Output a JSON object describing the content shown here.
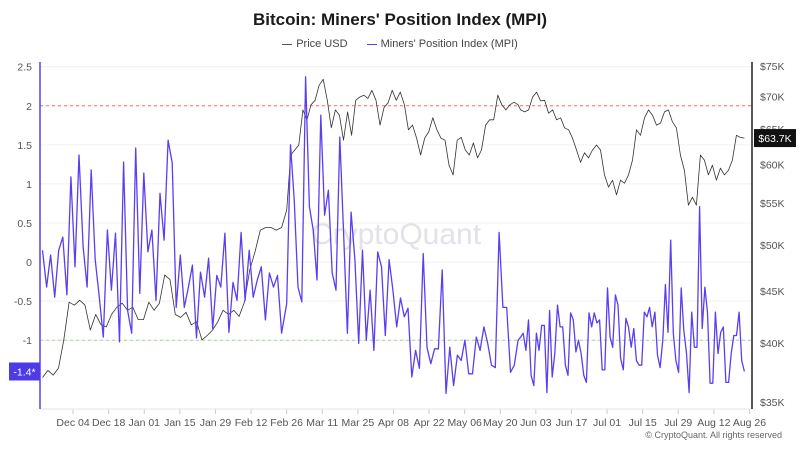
{
  "chart_data": {
    "type": "line",
    "title": "Bitcoin: Miners' Position Index (MPI)",
    "legend_placement": "top-center",
    "grid": true,
    "x_axis": {
      "type": "date",
      "range": [
        "2023-11-21",
        "2024-08-27"
      ],
      "ticks": [
        {
          "date": "2023-12-04",
          "label": "Dec 04"
        },
        {
          "date": "2023-12-18",
          "label": "Dec 18"
        },
        {
          "date": "2024-01-01",
          "label": "Jan 01"
        },
        {
          "date": "2024-01-15",
          "label": "Jan 15"
        },
        {
          "date": "2024-01-29",
          "label": "Jan 29"
        },
        {
          "date": "2024-02-12",
          "label": "Feb 12"
        },
        {
          "date": "2024-02-26",
          "label": "Feb 26"
        },
        {
          "date": "2024-03-11",
          "label": "Mar 11"
        },
        {
          "date": "2024-03-25",
          "label": "Mar 25"
        },
        {
          "date": "2024-04-08",
          "label": "Apr 08"
        },
        {
          "date": "2024-04-22",
          "label": "Apr 22"
        },
        {
          "date": "2024-05-06",
          "label": "May 06"
        },
        {
          "date": "2024-05-20",
          "label": "May 20"
        },
        {
          "date": "2024-06-03",
          "label": "Jun 03"
        },
        {
          "date": "2024-06-17",
          "label": "Jun 17"
        },
        {
          "date": "2024-07-01",
          "label": "Jul 01"
        },
        {
          "date": "2024-07-15",
          "label": "Jul 15"
        },
        {
          "date": "2024-07-29",
          "label": "Jul 29"
        },
        {
          "date": "2024-08-12",
          "label": "Aug 12"
        },
        {
          "date": "2024-08-26",
          "label": "Aug 26"
        }
      ]
    },
    "y_left": {
      "scale": "linear",
      "range": [
        -1.88,
        2.56
      ],
      "ticks": [
        {
          "value": 2.5,
          "label": "2.5"
        },
        {
          "value": 2,
          "label": "2"
        },
        {
          "value": 1.5,
          "label": "1.5"
        },
        {
          "value": 1,
          "label": "1"
        },
        {
          "value": 0.5,
          "label": "0.5"
        },
        {
          "value": 0,
          "label": "0"
        },
        {
          "value": -0.5,
          "label": "-0.5"
        },
        {
          "value": -1,
          "label": "-1"
        }
      ]
    },
    "y_right": {
      "scale": "log",
      "range": [
        34450,
        75700
      ],
      "ticks": [
        {
          "value": 75000,
          "label": "$75K"
        },
        {
          "value": 70000,
          "label": "$70K"
        },
        {
          "value": 65000,
          "label": "$65K"
        },
        {
          "value": 60000,
          "label": "$60K"
        },
        {
          "value": 55000,
          "label": "$55K"
        },
        {
          "value": 50000,
          "label": "$50K"
        },
        {
          "value": 45000,
          "label": "$45K"
        },
        {
          "value": 40000,
          "label": "$40K"
        },
        {
          "value": 35000,
          "label": "$35K"
        }
      ]
    },
    "reference_lines": [
      {
        "axis": "left",
        "value": 2,
        "color": "#f07070",
        "style": "dashed"
      },
      {
        "axis": "left",
        "value": -1,
        "color": "#9fd39f",
        "style": "dashed"
      }
    ],
    "series": [
      {
        "name": "Price USD",
        "axis": "right",
        "color": "#333333",
        "unit": "USD thousands",
        "segments": [
          {
            "from": "2023-11-22",
            "to": "2024-02-24",
            "values": [
              37.0,
              37.6,
              37.2,
              37.8,
              40.3,
              43.9,
              43.6,
              44.1,
              43.6,
              41.2,
              42.7,
              41.7,
              41.5,
              42.7,
              43.4,
              43.8,
              43.1,
              43.4,
              42.2,
              42.2,
              43.9,
              43.1,
              43.8,
              46.7,
              46.2,
              42.7,
              42.4,
              42.9,
              41.7,
              42.0,
              40.3,
              40.7,
              41.2,
              42.0,
              43.1,
              42.7,
              43.1,
              42.5,
              43.9,
              47.2,
              49.2,
              51.7,
              52.0,
              52.0,
              51.7,
              52.0
            ]
          },
          {
            "from": "2024-02-26",
            "to": "2024-05-27",
            "values": [
              54.1,
              61.3,
              62.0,
              62.7,
              67.9,
              66.4,
              68.7,
              69.4,
              71.8,
              72.8,
              69.4,
              65.2,
              67.9,
              67.1,
              63.4,
              67.6,
              64.1,
              69.4,
              69.9,
              70.2,
              69.7,
              71.0,
              69.4,
              65.6,
              68.3,
              69.0,
              71.0,
              69.4,
              70.7,
              68.7,
              64.9,
              65.6,
              63.7,
              61.3,
              63.7,
              64.6,
              66.7,
              64.9,
              63.7,
              63.4,
              59.9,
              58.6,
              63.4,
              63.8,
              62.0,
              61.3,
              63.0,
              60.9,
              62.0,
              65.6,
              66.4,
              66.4,
              70.2,
              68.7,
              67.9,
              68.7,
              69.1,
              68.7
            ]
          },
          {
            "from": "2024-05-28",
            "to": "2024-08-24",
            "values": [
              67.9,
              67.6,
              67.9,
              69.9,
              70.7,
              69.3,
              69.4,
              67.4,
              67.9,
              66.4,
              66.7,
              65.2,
              64.9,
              63.7,
              62.0,
              60.3,
              61.6,
              60.9,
              62.0,
              62.7,
              62.0,
              58.6,
              57.0,
              57.9,
              56.0,
              57.9,
              57.5,
              58.6,
              60.6,
              64.9,
              64.1,
              66.7,
              67.9,
              67.1,
              65.6,
              65.9,
              67.6,
              67.9,
              66.1,
              65.2,
              61.3,
              59.2,
              54.7,
              55.7,
              54.7,
              61.3,
              60.6,
              58.6,
              59.9,
              57.9,
              59.5,
              58.6,
              59.2,
              60.6,
              64.1,
              63.8,
              63.7
            ]
          }
        ],
        "last_value_label": "$63.7K"
      },
      {
        "name": "Miners' Position Index (MPI)",
        "axis": "left",
        "color": "#5a3ff0",
        "segments": [
          {
            "from": "2023-11-22",
            "to": "2024-02-24",
            "values": [
              0.15,
              -0.32,
              0.09,
              -0.45,
              0.15,
              0.32,
              -0.42,
              1.09,
              -0.06,
              1.37,
              0.2,
              -0.32,
              1.18,
              0.03,
              -0.45,
              -0.96,
              0.41,
              -0.36,
              0.37,
              -1.02,
              1.28,
              -0.62,
              -0.91,
              1.46,
              -0.4,
              1.14,
              0.13,
              0.41,
              -0.49,
              0.88,
              0.28,
              1.56,
              1.27,
              -0.58,
              0.09,
              -0.58,
              -0.32,
              -0.04,
              -0.97,
              -0.13,
              -0.45,
              0.05,
              -0.85,
              -0.17,
              -0.32,
              0.37,
              -0.9,
              -0.26,
              -0.49,
              0.38,
              -0.49,
              0.15,
              -0.45,
              -0.23,
              -0.06,
              -0.74,
              -0.14,
              -0.32,
              -0.17,
              -0.91
            ]
          },
          {
            "from": "2024-02-26",
            "to": "2024-05-27",
            "values": [
              -0.53,
              1.5,
              0.8,
              -0.32,
              -0.51,
              2.37,
              0.71,
              0.41,
              -0.23,
              1.88,
              0.6,
              0.92,
              -0.14,
              -0.36,
              1.6,
              0.37,
              -0.91,
              0.64,
              0.03,
              -1.04,
              0.15,
              -1,
              -0.36,
              -1.13,
              0.13,
              -0.06,
              -0.94,
              0.03,
              -0.36,
              -0.83,
              -0.46,
              -0.7,
              -0.59,
              -1.47,
              -1.13,
              -1.36,
              0.11,
              -1.09,
              -1.3,
              -1.11,
              -1.11,
              -0.1,
              -1.68,
              -1.09,
              -1.58,
              -1.19,
              -1.26,
              -1,
              -1.43,
              -1.43,
              -0.96,
              -1.13,
              -0.83,
              -1.04,
              -1.32,
              -1.35,
              0.38,
              -0.58,
              -0.58,
              -1.41,
              -1.32,
              -1
            ]
          },
          {
            "from": "2024-05-28",
            "to": "2024-08-24",
            "values": [
              -0.96,
              -0.91,
              -1.13,
              -0.74,
              -1.45,
              -1.58,
              -0.91,
              -1.13,
              -0.81,
              -0.81,
              -1.67,
              -0.62,
              -1.47,
              -1.17,
              -0.55,
              -0.83,
              -0.83,
              -1.32,
              -1.45,
              -0.65,
              -0.74,
              -1.15,
              -1,
              -1.17,
              -1.45,
              -1.54,
              -0.65,
              -0.83,
              -0.65,
              -0.78,
              -0.74,
              -1.38,
              -1.38,
              -0.33,
              -0.96,
              -1.09,
              -0.42,
              -0.55,
              -1.23,
              -1.38,
              -0.72,
              -0.83,
              -1.09,
              -0.85,
              -1.26,
              -1.32,
              -1.32,
              -0.64,
              -0.7,
              -0.58,
              -0.83,
              -0.64,
              -1.19,
              -1.35,
              -1,
              -0.29,
              -0.9,
              0.28,
              -0.91,
              -1.26,
              -1.41,
              -0.33,
              -0.87,
              -1.17,
              -1.67,
              -0.64,
              -1.09,
              -1.09,
              0.71,
              -0.85,
              -0.32,
              -0.65,
              -1.55,
              -1.55,
              -0.64,
              -1.17,
              -0.9,
              -0.83,
              -1.54,
              -1.54,
              -1.17,
              -0.94,
              -0.94,
              -0.64,
              -1.26,
              -1.4
            ]
          }
        ],
        "last_value_label": "-1.4*"
      }
    ]
  },
  "watermark": "CryptoQuant",
  "footer": "© CryptoQuant. All rights reserved",
  "legend": {
    "price": "Price USD",
    "mpi": "Miners' Position Index (MPI)"
  }
}
